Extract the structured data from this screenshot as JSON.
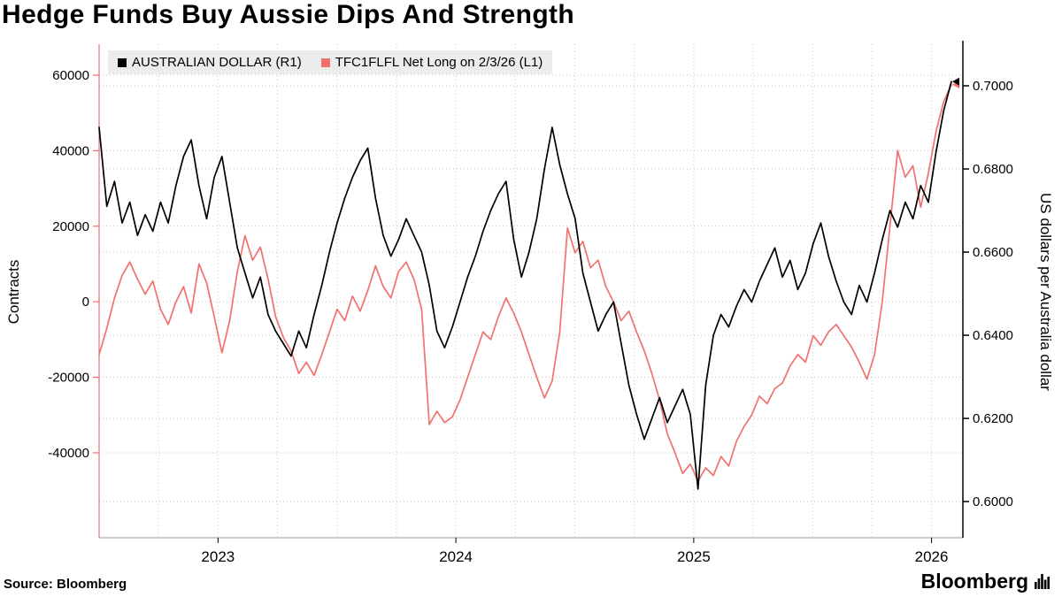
{
  "title": "Hedge Funds Buy Aussie Dips And Strength",
  "source": "Source: Bloomberg",
  "brand": "Bloomberg",
  "chart_data": {
    "type": "line",
    "title": "Hedge Funds Buy Aussie Dips And Strength",
    "x_range": [
      "2022-07",
      "2026-02"
    ],
    "x_ticks": [
      {
        "label": "2023",
        "t": 0.1395
      },
      {
        "label": "2024",
        "t": 0.4186
      },
      {
        "label": "2025",
        "t": 0.6977
      },
      {
        "label": "2026",
        "t": 0.9767
      }
    ],
    "x_grid": [
      0.0698,
      0.1395,
      0.2093,
      0.2791,
      0.3488,
      0.4186,
      0.4884,
      0.5581,
      0.6279,
      0.6977,
      0.7674,
      0.8372,
      0.907,
      0.9767
    ],
    "grid": "dotted",
    "legend_position": "top-left-inside",
    "left_axis": {
      "label": "Contracts",
      "ticks": [
        60000,
        40000,
        20000,
        0,
        -20000,
        -40000
      ],
      "range": [
        -62500,
        68200
      ]
    },
    "right_axis": {
      "label": "US dollars per Australia dollar",
      "ticks": [
        0.7,
        0.68,
        0.66,
        0.64,
        0.62,
        0.6
      ],
      "range": [
        0.5913,
        0.71
      ]
    },
    "series": [
      {
        "name": "AUSTRALIAN DOLLAR (R1)",
        "axis": "right",
        "color": "#000000",
        "values": [
          0.69,
          0.671,
          0.677,
          0.667,
          0.672,
          0.664,
          0.669,
          0.665,
          0.672,
          0.667,
          0.676,
          0.683,
          0.687,
          0.676,
          0.668,
          0.678,
          0.683,
          0.672,
          0.661,
          0.655,
          0.649,
          0.654,
          0.645,
          0.641,
          0.638,
          0.635,
          0.641,
          0.637,
          0.645,
          0.652,
          0.66,
          0.667,
          0.673,
          0.678,
          0.682,
          0.685,
          0.673,
          0.664,
          0.659,
          0.663,
          0.668,
          0.664,
          0.66,
          0.652,
          0.641,
          0.637,
          0.642,
          0.648,
          0.654,
          0.659,
          0.665,
          0.67,
          0.674,
          0.677,
          0.663,
          0.654,
          0.66,
          0.668,
          0.68,
          0.69,
          0.681,
          0.674,
          0.668,
          0.655,
          0.648,
          0.641,
          0.645,
          0.648,
          0.638,
          0.628,
          0.621,
          0.615,
          0.62,
          0.625,
          0.619,
          0.623,
          0.627,
          0.621,
          0.603,
          0.628,
          0.64,
          0.645,
          0.642,
          0.647,
          0.651,
          0.648,
          0.653,
          0.657,
          0.661,
          0.654,
          0.658,
          0.651,
          0.655,
          0.662,
          0.667,
          0.659,
          0.653,
          0.648,
          0.645,
          0.652,
          0.648,
          0.655,
          0.663,
          0.67,
          0.666,
          0.672,
          0.668,
          0.676,
          0.672,
          0.684,
          0.694,
          0.701
        ]
      },
      {
        "name": "TFC1FLFL Net Long on 2/3/26 (L1)",
        "axis": "left",
        "color": "#f0716d",
        "values": [
          -14000,
          -7000,
          1000,
          7000,
          10500,
          6000,
          2000,
          5500,
          -2000,
          -6000,
          0,
          4000,
          -3000,
          10000,
          5000,
          -4000,
          -13500,
          -5000,
          8000,
          17500,
          11000,
          14500,
          6000,
          -4000,
          -9500,
          -13000,
          -19000,
          -16000,
          -19500,
          -14000,
          -8000,
          -2000,
          -5000,
          1500,
          -2500,
          3000,
          9500,
          4000,
          1000,
          8000,
          10500,
          6000,
          -2000,
          -32500,
          -29000,
          -32000,
          -30500,
          -26000,
          -20000,
          -14000,
          -8000,
          -10000,
          -4000,
          1000,
          -3000,
          -8000,
          -14000,
          -20000,
          -25500,
          -21000,
          -8000,
          19500,
          13000,
          16000,
          9000,
          11000,
          4000,
          0,
          -5000,
          -2500,
          -8000,
          -13000,
          -19000,
          -26000,
          -35000,
          -40000,
          -45500,
          -43000,
          -47500,
          -44000,
          -46000,
          -41000,
          -43500,
          -37000,
          -33000,
          -30000,
          -25000,
          -27000,
          -23000,
          -21500,
          -17000,
          -14000,
          -16000,
          -9000,
          -11500,
          -8000,
          -6000,
          -9000,
          -12000,
          -16000,
          -20500,
          -14000,
          0,
          20000,
          40000,
          33000,
          36000,
          25000,
          34000,
          45000,
          53000,
          57500
        ]
      }
    ]
  }
}
